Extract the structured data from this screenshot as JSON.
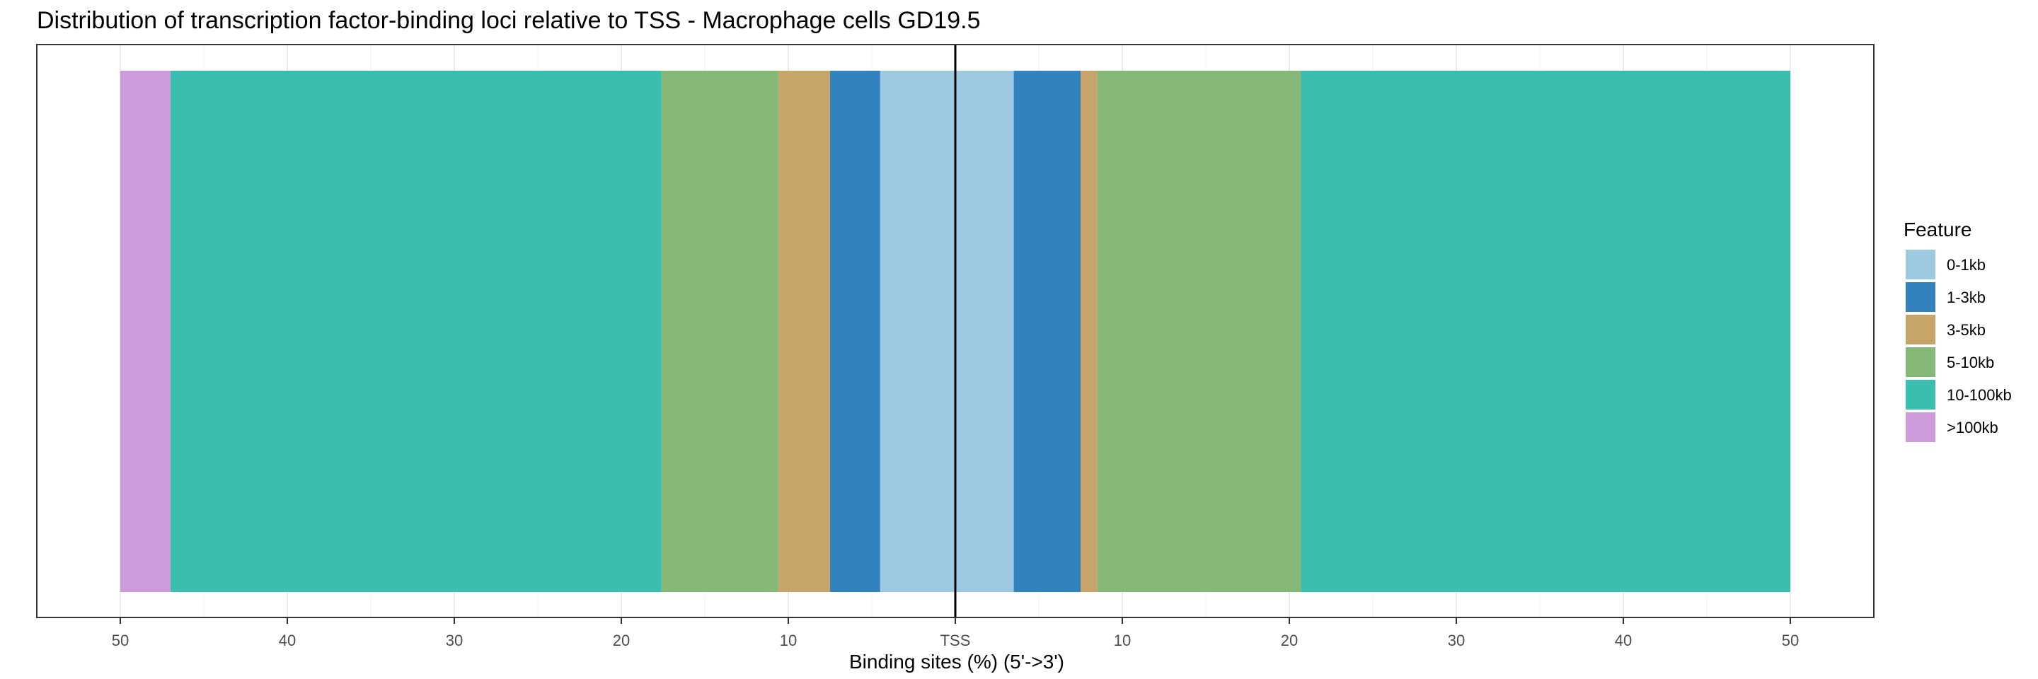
{
  "chart_data": {
    "type": "bar",
    "orientation": "horizontal-stacked",
    "title": "Distribution of transcription factor-binding loci relative to TSS - Macrophage cells GD19.5",
    "xlabel": "Binding sites (%) (5'->3')",
    "ylabel": "",
    "xlim": [
      -55,
      55
    ],
    "x_ticks": [
      {
        "value": -50,
        "label": "50"
      },
      {
        "value": -40,
        "label": "40"
      },
      {
        "value": -30,
        "label": "30"
      },
      {
        "value": -20,
        "label": "20"
      },
      {
        "value": -10,
        "label": "10"
      },
      {
        "value": 0,
        "label": "TSS"
      },
      {
        "value": 10,
        "label": "10"
      },
      {
        "value": 20,
        "label": "20"
      },
      {
        "value": 30,
        "label": "30"
      },
      {
        "value": 40,
        "label": "40"
      },
      {
        "value": 50,
        "label": "50"
      }
    ],
    "grid": true,
    "legend_position": "right",
    "legend_title": "Feature",
    "series": [
      {
        "name": "0-1kb",
        "color": "#9ECAE1",
        "upstream": 4.5,
        "downstream": 3.5
      },
      {
        "name": "1-3kb",
        "color": "#3182BD",
        "upstream": 3.0,
        "downstream": 4.0
      },
      {
        "name": "3-5kb",
        "color": "#C6A46A",
        "upstream": 3.1,
        "downstream": 1.0
      },
      {
        "name": "5-10kb",
        "color": "#85B876",
        "upstream": 7.0,
        "downstream": 12.2
      },
      {
        "name": "10-100kb",
        "color": "#3ABEB0",
        "upstream": 29.4,
        "downstream": 29.3
      },
      {
        "name": ">100kb",
        "color": "#CD9ADA",
        "upstream": 3.0,
        "downstream": 0.0
      }
    ]
  }
}
